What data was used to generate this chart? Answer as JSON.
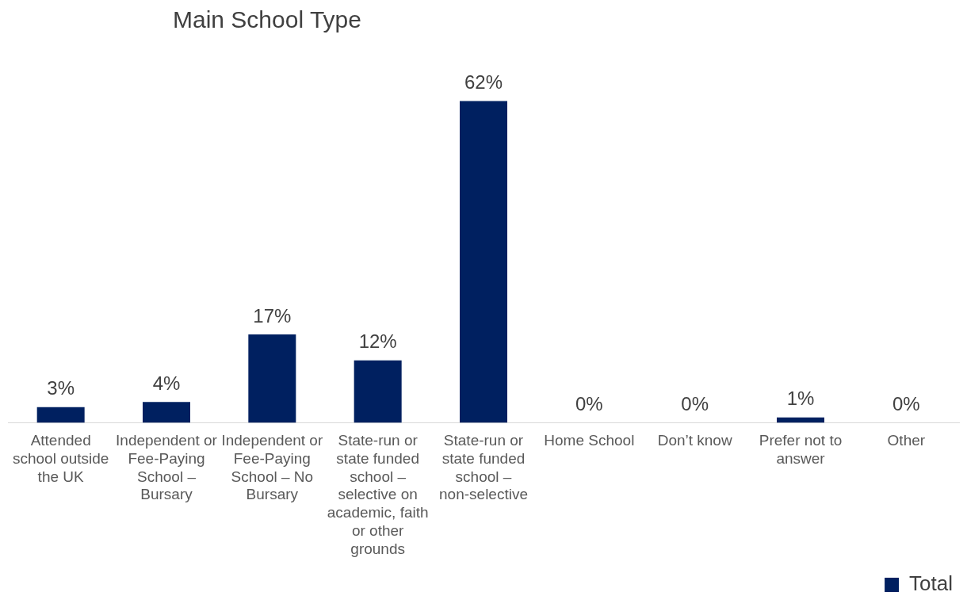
{
  "chart_data": {
    "type": "bar",
    "title": "Main School Type",
    "categories": [
      "Attended school outside the UK",
      "Independent or Fee-Paying School – Bursary",
      "Independent or Fee-Paying School – No Bursary",
      "State-run or state funded school – selective on academic, faith or other grounds",
      "State-run or state funded school – non-selective",
      "Home School",
      "Don’t know",
      "Prefer not to answer",
      "Other"
    ],
    "series": [
      {
        "name": "Total",
        "color": "#002060",
        "values": [
          3,
          4,
          17,
          12,
          62,
          0,
          0,
          1,
          0
        ],
        "value_labels": [
          "3%",
          "4%",
          "17%",
          "12%",
          "62%",
          "0%",
          "0%",
          "1%",
          "0%"
        ]
      }
    ],
    "legend": "bottom",
    "grid": false
  }
}
